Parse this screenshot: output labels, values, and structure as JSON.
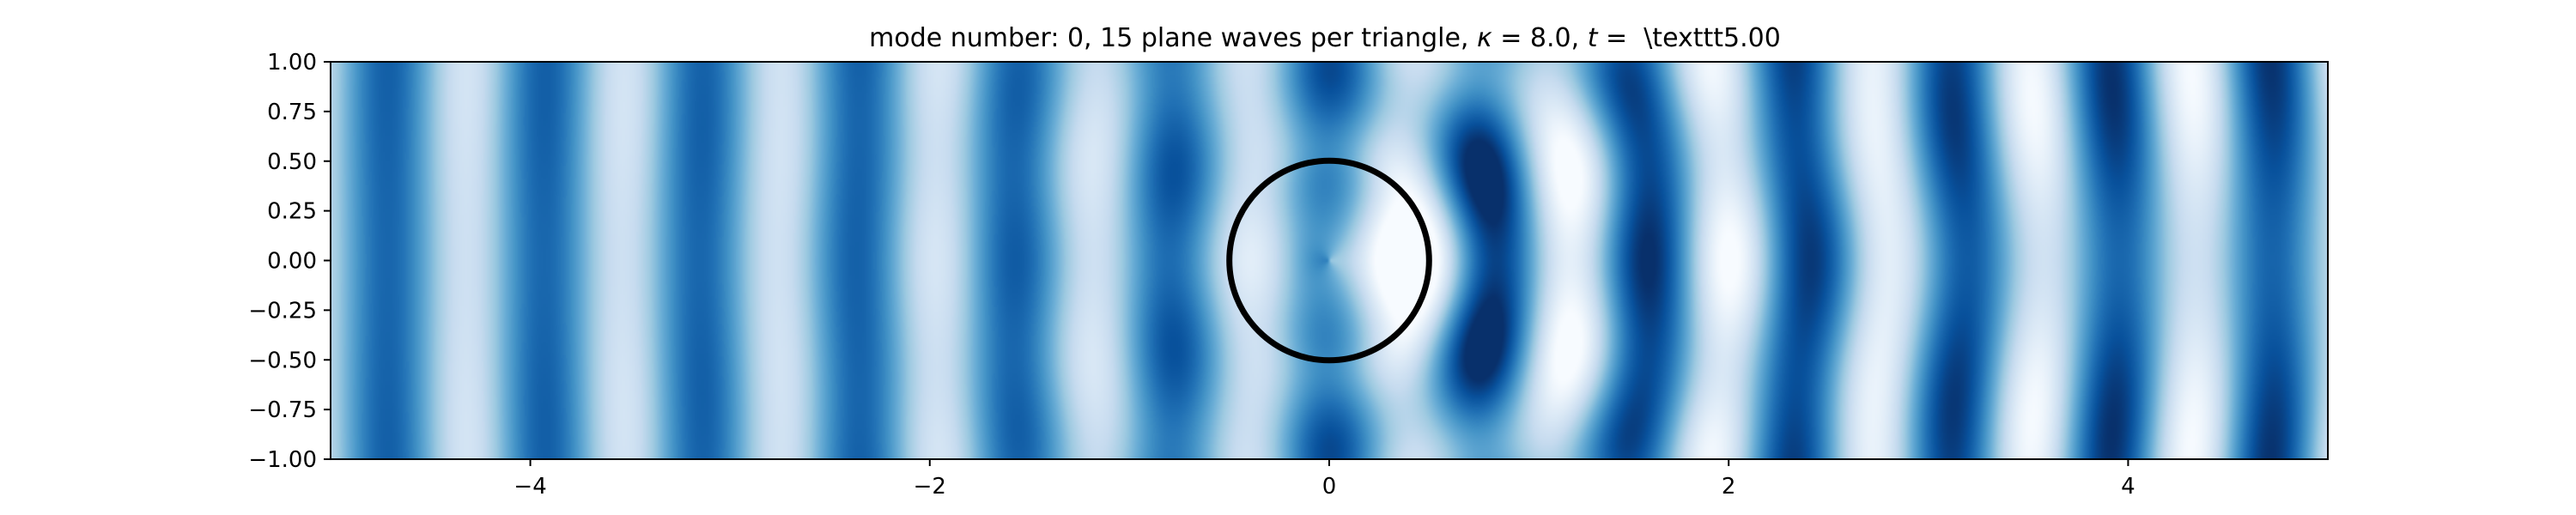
{
  "chart_data": {
    "type": "heatmap",
    "title": "mode number: 0, 15 plane waves per triangle, κ = 8.0, t = \\texttt5.00",
    "title_parts": {
      "prefix": "mode number: 0, 15 plane waves per triangle, ",
      "kappa_symbol": "κ",
      "kappa_value": " = 8.0, ",
      "t_symbol": "t",
      "t_value": " =  \\texttt5.00"
    },
    "xlabel": "",
    "ylabel": "",
    "xlim": [
      -5,
      5
    ],
    "ylim": [
      -1,
      1
    ],
    "x_ticks": [
      -4,
      -2,
      0,
      2,
      4
    ],
    "x_tick_labels": [
      "−4",
      "−2",
      "0",
      "2",
      "4"
    ],
    "y_ticks": [
      1.0,
      0.75,
      0.5,
      0.25,
      0.0,
      -0.25,
      -0.5,
      -0.75,
      -1.0
    ],
    "y_tick_labels": [
      "1.00",
      "0.75",
      "0.50",
      "0.25",
      "0.00",
      "−0.25",
      "−0.50",
      "−0.75",
      "−1.00"
    ],
    "colormap": "Blues",
    "colors": {
      "low": "#f7fbff",
      "mid": "#6baed6",
      "high": "#08306b",
      "outline": "#000000"
    },
    "field": {
      "wavenumber": 8.0,
      "description_free": true
    },
    "scatterer": {
      "shape": "circle",
      "center": [
        0,
        0
      ],
      "radius": 0.5
    },
    "grid": false,
    "legend": "none"
  }
}
